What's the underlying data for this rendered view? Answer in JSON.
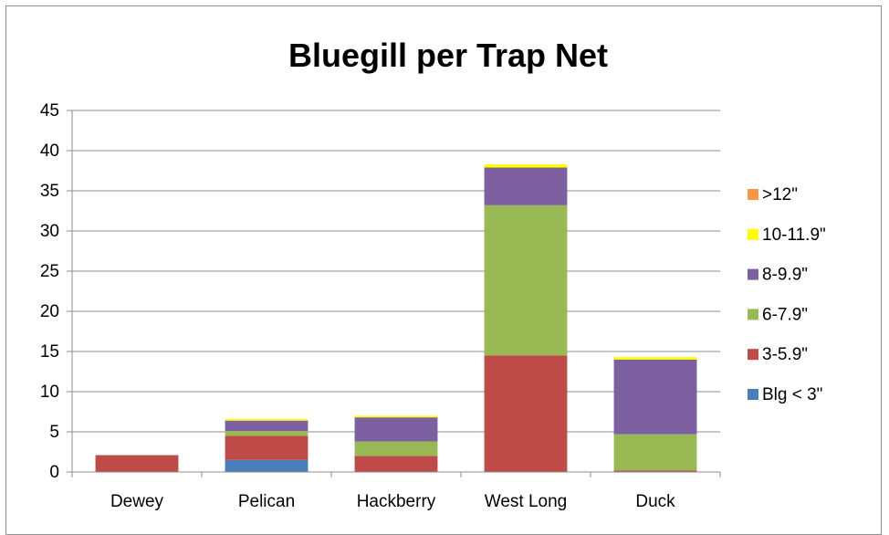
{
  "chart_data": {
    "type": "bar",
    "stacked": true,
    "title": "Bluegill per Trap Net",
    "xlabel": "",
    "ylabel": "",
    "ylim": [
      0,
      45
    ],
    "y_ticks": [
      0,
      5,
      10,
      15,
      20,
      25,
      30,
      35,
      40,
      45
    ],
    "grid": true,
    "legend_position": "right",
    "categories": [
      "Dewey",
      "Pelican",
      "Hackberry",
      "West Long",
      "Duck"
    ],
    "series": [
      {
        "name": "Blg  < 3\"",
        "color": "#4a7ebb",
        "values": [
          0,
          1.5,
          0,
          0,
          0
        ]
      },
      {
        "name": "3-5.9\"",
        "color": "#be4b48",
        "values": [
          2.1,
          3.0,
          2.0,
          14.5,
          0.2
        ]
      },
      {
        "name": "6-7.9\"",
        "color": "#98b954",
        "values": [
          0,
          0.6,
          1.8,
          18.7,
          4.5
        ]
      },
      {
        "name": "8-9.9\"",
        "color": "#7d60a0",
        "values": [
          0,
          1.3,
          3.0,
          4.7,
          9.3
        ]
      },
      {
        "name": "10-11.9\"",
        "color": "#ffff00",
        "values": [
          0,
          0.2,
          0.2,
          0.4,
          0.3
        ]
      },
      {
        "name": ">12\"",
        "color": "#f79646",
        "values": [
          0,
          0,
          0,
          0,
          0
        ]
      }
    ]
  }
}
